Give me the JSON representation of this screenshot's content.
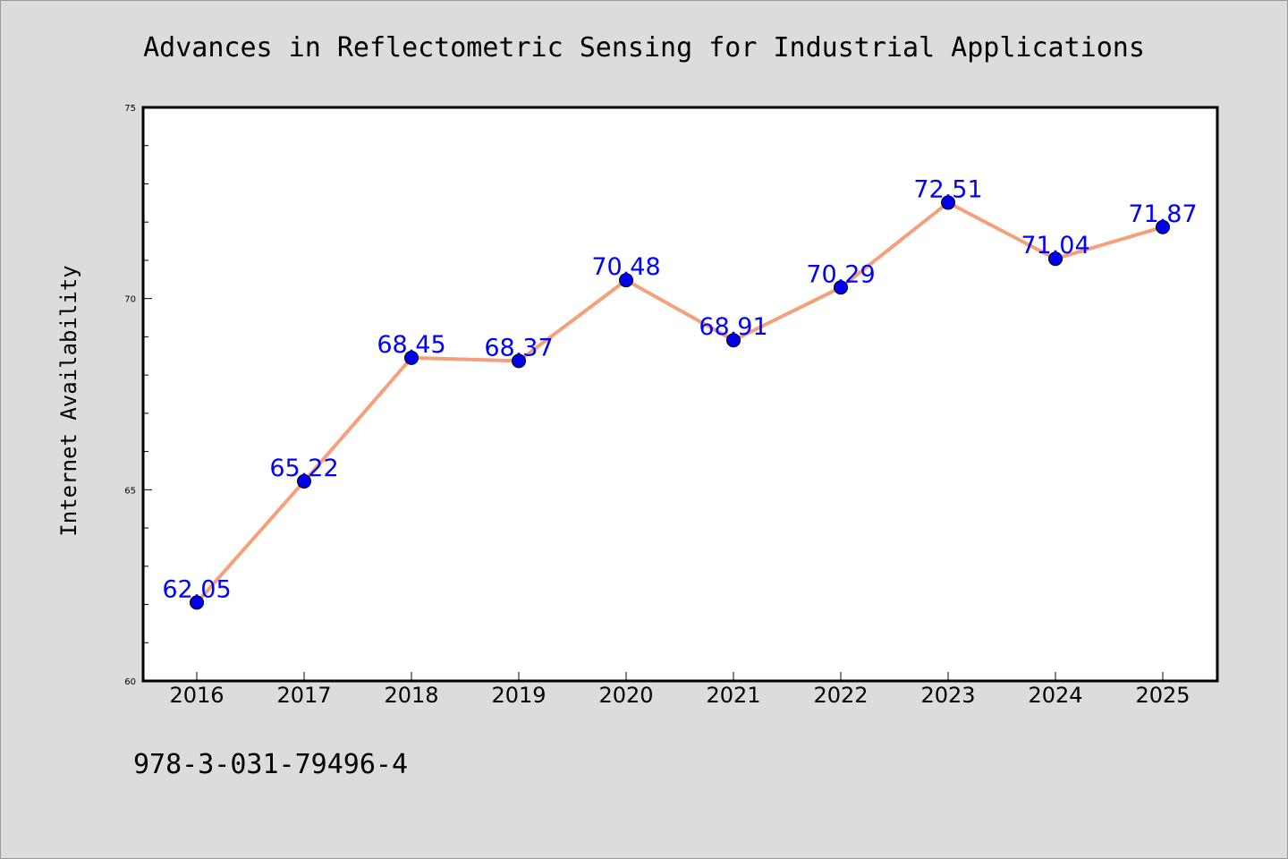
{
  "chart_data": {
    "type": "line",
    "title": "Advances in Reflectometric Sensing for Industrial Applications",
    "xlabel": "",
    "ylabel": "Internet Availability",
    "categories": [
      "2016",
      "2017",
      "2018",
      "2019",
      "2020",
      "2021",
      "2022",
      "2023",
      "2024",
      "2025"
    ],
    "series": [
      {
        "values": [
          62.05,
          65.22,
          68.45,
          68.37,
          70.48,
          68.91,
          70.29,
          72.51,
          71.04,
          71.87
        ],
        "labels": [
          "62.05",
          "65.22",
          "68.45",
          "68.37",
          "70.48",
          "68.91",
          "70.29",
          "72.51",
          "71.04",
          "71.87"
        ],
        "line_color": "#f4a07a",
        "marker_color": "#0000ee",
        "label_color": "#0000ff"
      }
    ],
    "ylim": [
      60,
      75
    ],
    "yticks": [
      "60",
      "65",
      "70",
      "75"
    ],
    "grid": false,
    "legend": "none"
  },
  "footer": {
    "isbn": "978-3-031-79496-4"
  },
  "colors": {
    "background": "#dcdcdc",
    "plot_background": "#ffffff"
  }
}
